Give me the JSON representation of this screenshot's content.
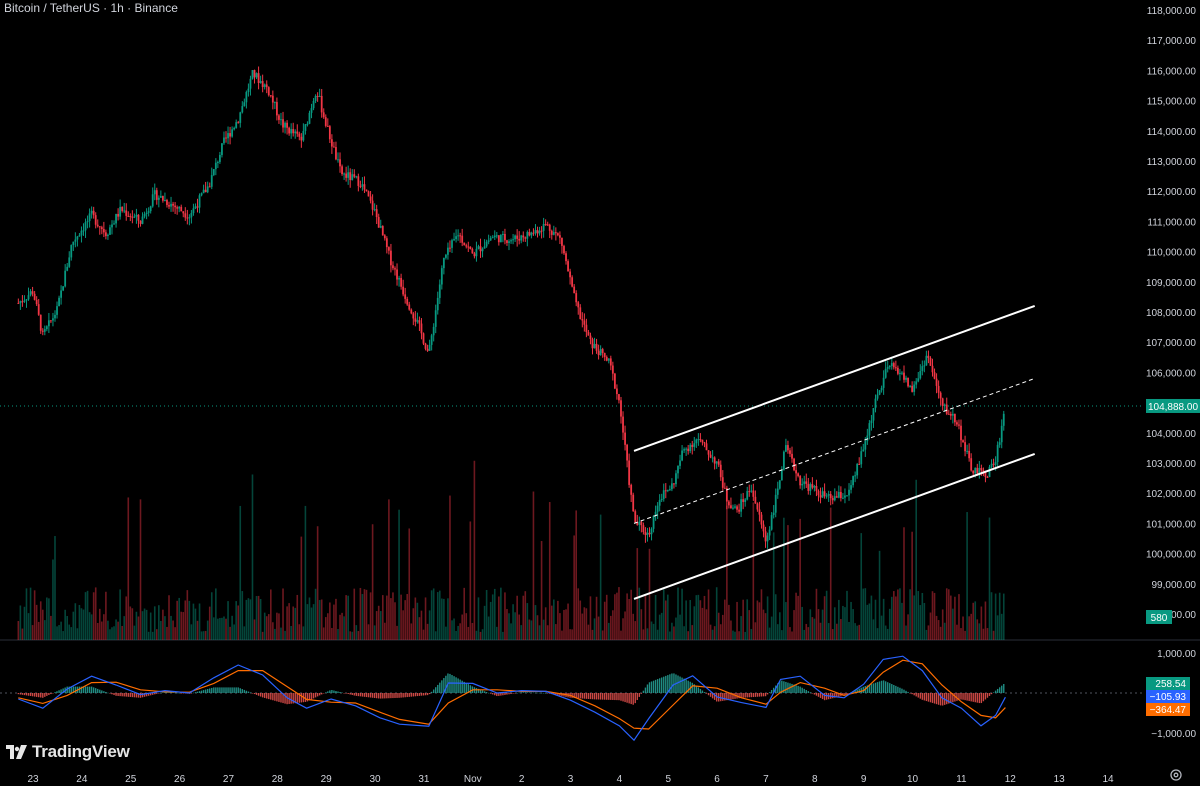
{
  "header": {
    "title": "Bitcoin / TetherUS · 1h · Binance"
  },
  "branding": {
    "logo_text": "TradingView"
  },
  "colors": {
    "up": "#089981",
    "down": "#f23645",
    "macd_line": "#2962ff",
    "signal_line": "#ff6d00",
    "histogram_up": "#26a69a",
    "histogram_down": "#ef5350",
    "channel": "#ffffff",
    "price_label": "#089981",
    "macd_label": "#2962ff",
    "signal_label": "#ff6d00"
  },
  "icons": {
    "logo": "tradingview-logo-icon",
    "settings": "gear-icon"
  },
  "chart_data": [
    {
      "type": "candlestick",
      "title": "Bitcoin / TetherUS · 1h · Binance",
      "x_tick_labels": [
        "23",
        "24",
        "25",
        "26",
        "27",
        "28",
        "29",
        "30",
        "31",
        "Nov",
        "2",
        "3",
        "4",
        "5",
        "6",
        "7",
        "8",
        "9",
        "10",
        "11",
        "12",
        "13",
        "14"
      ],
      "y_tick_labels": [
        "118,000.00",
        "117,000.00",
        "116,000.00",
        "115,000.00",
        "114,000.00",
        "113,000.00",
        "112,000.00",
        "111,000.00",
        "110,000.00",
        "109,000.00",
        "108,000.00",
        "107,000.00",
        "106,000.00",
        "105,000.00",
        "104,000.00",
        "103,000.00",
        "102,000.00",
        "101,000.00",
        "100,000.00",
        "99,000.00",
        "98,000.00"
      ],
      "y_tick_values": [
        118000,
        117000,
        116000,
        115000,
        114000,
        113000,
        112000,
        111000,
        110000,
        109000,
        108000,
        107000,
        106000,
        105000,
        104000,
        103000,
        102000,
        101000,
        100000,
        99000,
        98000
      ],
      "ylim": [
        97500,
        118300
      ],
      "xlim_days": [
        22.7,
        14.6
      ],
      "last_price": 104888,
      "last_price_label": "104,888.00",
      "last_volume_label": "580",
      "price_path": [
        [
          22.7,
          108300
        ],
        [
          23.0,
          108700
        ],
        [
          23.2,
          107200
        ],
        [
          23.5,
          108100
        ],
        [
          23.8,
          110300
        ],
        [
          24.2,
          111200
        ],
        [
          24.5,
          110600
        ],
        [
          24.8,
          111400
        ],
        [
          25.2,
          111000
        ],
        [
          25.5,
          111900
        ],
        [
          25.8,
          111600
        ],
        [
          26.2,
          111200
        ],
        [
          26.6,
          112200
        ],
        [
          26.9,
          113600
        ],
        [
          27.2,
          114400
        ],
        [
          27.5,
          115900
        ],
        [
          27.8,
          115400
        ],
        [
          28.1,
          114200
        ],
        [
          28.5,
          113700
        ],
        [
          28.8,
          115400
        ],
        [
          29.0,
          114200
        ],
        [
          29.3,
          112600
        ],
        [
          29.7,
          112300
        ],
        [
          30.0,
          111300
        ],
        [
          30.3,
          109800
        ],
        [
          30.6,
          108600
        ],
        [
          30.9,
          107500
        ],
        [
          31.1,
          106600
        ],
        [
          31.4,
          109700
        ],
        [
          31.7,
          110600
        ],
        [
          32.0,
          109900
        ],
        [
          32.4,
          110500
        ],
        [
          32.8,
          110400
        ],
        [
          33.2,
          110600
        ],
        [
          33.5,
          110900
        ],
        [
          33.8,
          110400
        ],
        [
          34.1,
          108300
        ],
        [
          34.4,
          107000
        ],
        [
          34.8,
          106300
        ],
        [
          35.0,
          105000
        ],
        [
          35.3,
          101100
        ],
        [
          35.6,
          100600
        ],
        [
          35.8,
          101800
        ],
        [
          36.1,
          102300
        ],
        [
          36.3,
          103400
        ],
        [
          36.6,
          103800
        ],
        [
          37.0,
          103000
        ],
        [
          37.2,
          101800
        ],
        [
          37.4,
          101400
        ],
        [
          37.7,
          102200
        ],
        [
          38.0,
          100400
        ],
        [
          38.2,
          101800
        ],
        [
          38.4,
          103500
        ],
        [
          38.7,
          102400
        ],
        [
          39.0,
          102100
        ],
        [
          39.3,
          101800
        ],
        [
          39.7,
          102000
        ],
        [
          40.0,
          103500
        ],
        [
          40.2,
          104800
        ],
        [
          40.5,
          106200
        ],
        [
          40.7,
          106100
        ],
        [
          41.0,
          105400
        ],
        [
          41.3,
          106600
        ],
        [
          41.6,
          104900
        ],
        [
          41.9,
          104400
        ],
        [
          42.2,
          102800
        ],
        [
          42.5,
          102600
        ],
        [
          42.7,
          103100
        ],
        [
          42.9,
          104888
        ]
      ],
      "volume_max": 100,
      "indicator": {
        "type": "macd",
        "y_tick_labels": [
          "1,000.00",
          "−1,000.00"
        ],
        "y_tick_values": [
          1000,
          -1000
        ],
        "ylim": [
          -1350,
          1350
        ],
        "macd_label": "−105.93",
        "signal_label": "−364.47",
        "histogram_label": "258.54",
        "macd_path": [
          [
            22.7,
            -150
          ],
          [
            23.2,
            -380
          ],
          [
            23.7,
            100
          ],
          [
            24.2,
            420
          ],
          [
            24.7,
            200
          ],
          [
            25.2,
            -40
          ],
          [
            25.7,
            60
          ],
          [
            26.2,
            0
          ],
          [
            26.7,
            380
          ],
          [
            27.2,
            700
          ],
          [
            27.7,
            450
          ],
          [
            28.2,
            -120
          ],
          [
            28.6,
            -380
          ],
          [
            29.1,
            -150
          ],
          [
            29.6,
            -320
          ],
          [
            30.1,
            -620
          ],
          [
            30.5,
            -780
          ],
          [
            31.1,
            -830
          ],
          [
            31.5,
            250
          ],
          [
            32.0,
            240
          ],
          [
            32.5,
            0
          ],
          [
            33.0,
            60
          ],
          [
            33.5,
            40
          ],
          [
            34.0,
            -180
          ],
          [
            34.5,
            -480
          ],
          [
            35.0,
            -820
          ],
          [
            35.3,
            -1180
          ],
          [
            35.6,
            -640
          ],
          [
            36.1,
            200
          ],
          [
            36.5,
            430
          ],
          [
            37.0,
            -100
          ],
          [
            37.5,
            -240
          ],
          [
            38.0,
            -360
          ],
          [
            38.3,
            340
          ],
          [
            38.7,
            420
          ],
          [
            39.2,
            -60
          ],
          [
            39.6,
            -120
          ],
          [
            40.0,
            220
          ],
          [
            40.4,
            840
          ],
          [
            40.8,
            920
          ],
          [
            41.2,
            560
          ],
          [
            41.6,
            -120
          ],
          [
            42.0,
            -380
          ],
          [
            42.4,
            -820
          ],
          [
            42.7,
            -560
          ],
          [
            42.9,
            -106
          ]
        ],
        "signal_path": [
          [
            22.7,
            -120
          ],
          [
            23.2,
            -260
          ],
          [
            23.7,
            -60
          ],
          [
            24.2,
            260
          ],
          [
            24.7,
            270
          ],
          [
            25.2,
            80
          ],
          [
            25.7,
            30
          ],
          [
            26.2,
            20
          ],
          [
            26.7,
            240
          ],
          [
            27.2,
            560
          ],
          [
            27.7,
            560
          ],
          [
            28.2,
            160
          ],
          [
            28.6,
            -160
          ],
          [
            29.1,
            -230
          ],
          [
            29.6,
            -250
          ],
          [
            30.1,
            -480
          ],
          [
            30.5,
            -660
          ],
          [
            31.1,
            -780
          ],
          [
            31.5,
            -250
          ],
          [
            32.0,
            80
          ],
          [
            32.5,
            80
          ],
          [
            33.0,
            40
          ],
          [
            33.5,
            40
          ],
          [
            34.0,
            -60
          ],
          [
            34.5,
            -320
          ],
          [
            35.0,
            -640
          ],
          [
            35.3,
            -880
          ],
          [
            35.6,
            -900
          ],
          [
            36.1,
            -300
          ],
          [
            36.5,
            180
          ],
          [
            37.0,
            120
          ],
          [
            37.5,
            -120
          ],
          [
            38.0,
            -280
          ],
          [
            38.3,
            20
          ],
          [
            38.7,
            260
          ],
          [
            39.2,
            120
          ],
          [
            39.6,
            -60
          ],
          [
            40.0,
            60
          ],
          [
            40.4,
            520
          ],
          [
            40.8,
            820
          ],
          [
            41.2,
            730
          ],
          [
            41.6,
            200
          ],
          [
            42.0,
            -220
          ],
          [
            42.4,
            -560
          ],
          [
            42.7,
            -620
          ],
          [
            42.9,
            -364
          ]
        ]
      },
      "channel": {
        "upper": [
          [
            35.3,
            103400
          ],
          [
            43.5,
            108200
          ]
        ],
        "middle": [
          [
            35.3,
            101000
          ],
          [
            43.5,
            105800
          ]
        ],
        "lower": [
          [
            35.3,
            98500
          ],
          [
            43.5,
            103300
          ]
        ]
      }
    }
  ]
}
